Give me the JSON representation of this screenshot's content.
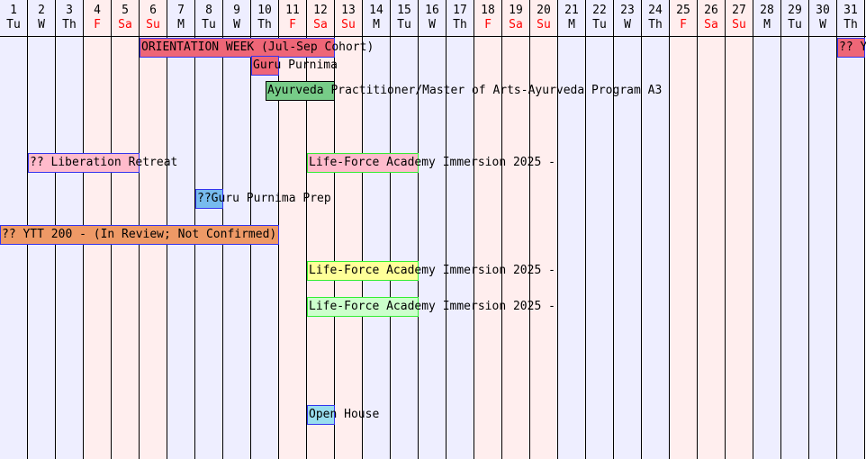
{
  "calendar": {
    "days": [
      {
        "num": "1",
        "name": "Tu",
        "weekend": false
      },
      {
        "num": "2",
        "name": "W",
        "weekend": false
      },
      {
        "num": "3",
        "name": "Th",
        "weekend": false
      },
      {
        "num": "4",
        "name": "F",
        "weekend": true
      },
      {
        "num": "5",
        "name": "Sa",
        "weekend": true
      },
      {
        "num": "6",
        "name": "Su",
        "weekend": true
      },
      {
        "num": "7",
        "name": "M",
        "weekend": false
      },
      {
        "num": "8",
        "name": "Tu",
        "weekend": false
      },
      {
        "num": "9",
        "name": "W",
        "weekend": false
      },
      {
        "num": "10",
        "name": "Th",
        "weekend": false
      },
      {
        "num": "11",
        "name": "F",
        "weekend": true
      },
      {
        "num": "12",
        "name": "Sa",
        "weekend": true
      },
      {
        "num": "13",
        "name": "Su",
        "weekend": true
      },
      {
        "num": "14",
        "name": "M",
        "weekend": false
      },
      {
        "num": "15",
        "name": "Tu",
        "weekend": false
      },
      {
        "num": "16",
        "name": "W",
        "weekend": false
      },
      {
        "num": "17",
        "name": "Th",
        "weekend": false
      },
      {
        "num": "18",
        "name": "F",
        "weekend": true
      },
      {
        "num": "19",
        "name": "Sa",
        "weekend": true
      },
      {
        "num": "20",
        "name": "Su",
        "weekend": true
      },
      {
        "num": "21",
        "name": "M",
        "weekend": false
      },
      {
        "num": "22",
        "name": "Tu",
        "weekend": false
      },
      {
        "num": "23",
        "name": "W",
        "weekend": false
      },
      {
        "num": "24",
        "name": "Th",
        "weekend": false
      },
      {
        "num": "25",
        "name": "F",
        "weekend": true
      },
      {
        "num": "26",
        "name": "Sa",
        "weekend": true
      },
      {
        "num": "27",
        "name": "Su",
        "weekend": true
      },
      {
        "num": "28",
        "name": "M",
        "weekend": false
      },
      {
        "num": "29",
        "name": "Tu",
        "weekend": false
      },
      {
        "num": "30",
        "name": "W",
        "weekend": false
      },
      {
        "num": "31",
        "name": "Th",
        "weekend": false
      }
    ],
    "events": [
      {
        "label": "ORIENTATION WEEK (Jul-Sep Cohort)",
        "start_day": 6,
        "end_day": 12,
        "fill": "#ee6677",
        "border": "#3333ee"
      },
      {
        "label": "?? Y",
        "start_day": 31,
        "end_day": 31,
        "fill": "#ee6677",
        "border": "#3333ee"
      },
      {
        "label": "Guru Purnima",
        "start_day": 10,
        "end_day": 10,
        "fill": "#ee6677",
        "border": "#3333ee"
      },
      {
        "label": "Ayurveda Practitioner/Master of Arts-Ayurveda Program A3",
        "start_day": 10.5,
        "end_day": 12,
        "fill": "#77cc88",
        "border": "#000000"
      },
      {
        "label": "?? Liberation Retreat",
        "start_day": 2,
        "end_day": 5,
        "fill": "#ffbbcc",
        "border": "#3333ee"
      },
      {
        "label": "Life-Force Academy Immersion 2025 -",
        "start_day": 12,
        "end_day": 15,
        "fill": "#ffbbcc",
        "border": "#33ee33"
      },
      {
        "label": "??Guru Purnima Prep",
        "start_day": 8,
        "end_day": 8,
        "fill": "#77bbee",
        "border": "#3333ee"
      },
      {
        "label": "?? YTT 200 - (In Review; Not Confirmed)",
        "start_day": 1,
        "end_day": 10,
        "fill": "#ee9966",
        "border": "#3333ee"
      },
      {
        "label": "Life-Force Academy Immersion 2025 -",
        "start_day": 12,
        "end_day": 15,
        "fill": "#ffff99",
        "border": "#33ee33"
      },
      {
        "label": "Life-Force Academy Immersion 2025 -",
        "start_day": 12,
        "end_day": 15,
        "fill": "#ccffcc",
        "border": "#33ee33"
      },
      {
        "label": "Open House",
        "start_day": 12,
        "end_day": 12,
        "fill": "#99ddee",
        "border": "#3333ee"
      }
    ]
  }
}
